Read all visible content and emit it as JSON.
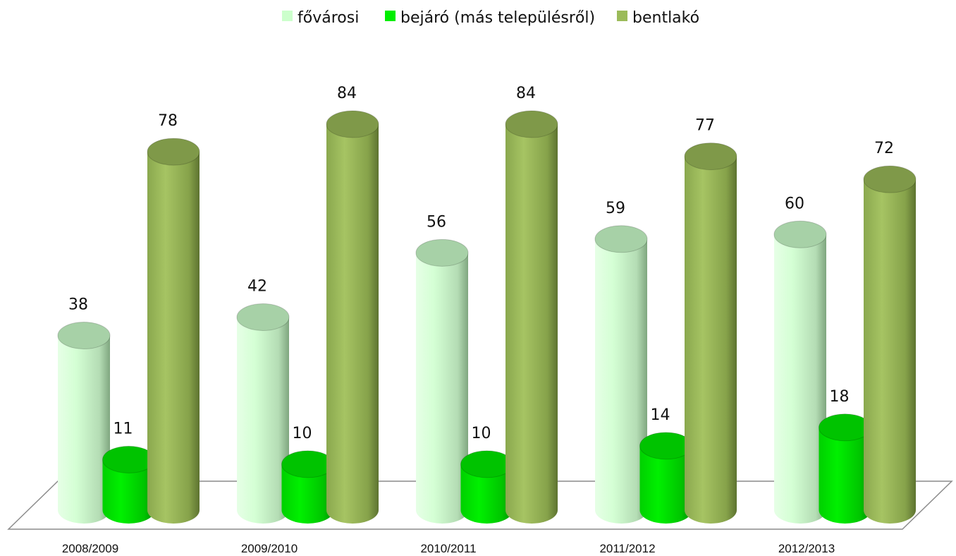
{
  "chart_data": {
    "type": "bar",
    "style": "3d-cylinder",
    "categories": [
      "2008/2009",
      "2009/2010",
      "2010/2011",
      "2011/2012",
      "2012/2013"
    ],
    "series": [
      {
        "name": "fővárosi",
        "color": "#ccffcc",
        "values": [
          38,
          42,
          56,
          59,
          60
        ]
      },
      {
        "name": "bejáró (más településről)",
        "color": "#00ee00",
        "values": [
          11,
          10,
          10,
          14,
          18
        ]
      },
      {
        "name": "bentlakó",
        "color": "#9bbb59",
        "values": [
          78,
          84,
          84,
          77,
          72
        ]
      }
    ],
    "legend_position": "top",
    "grid": false,
    "data_labels": true,
    "ylim": [
      0,
      84
    ]
  }
}
